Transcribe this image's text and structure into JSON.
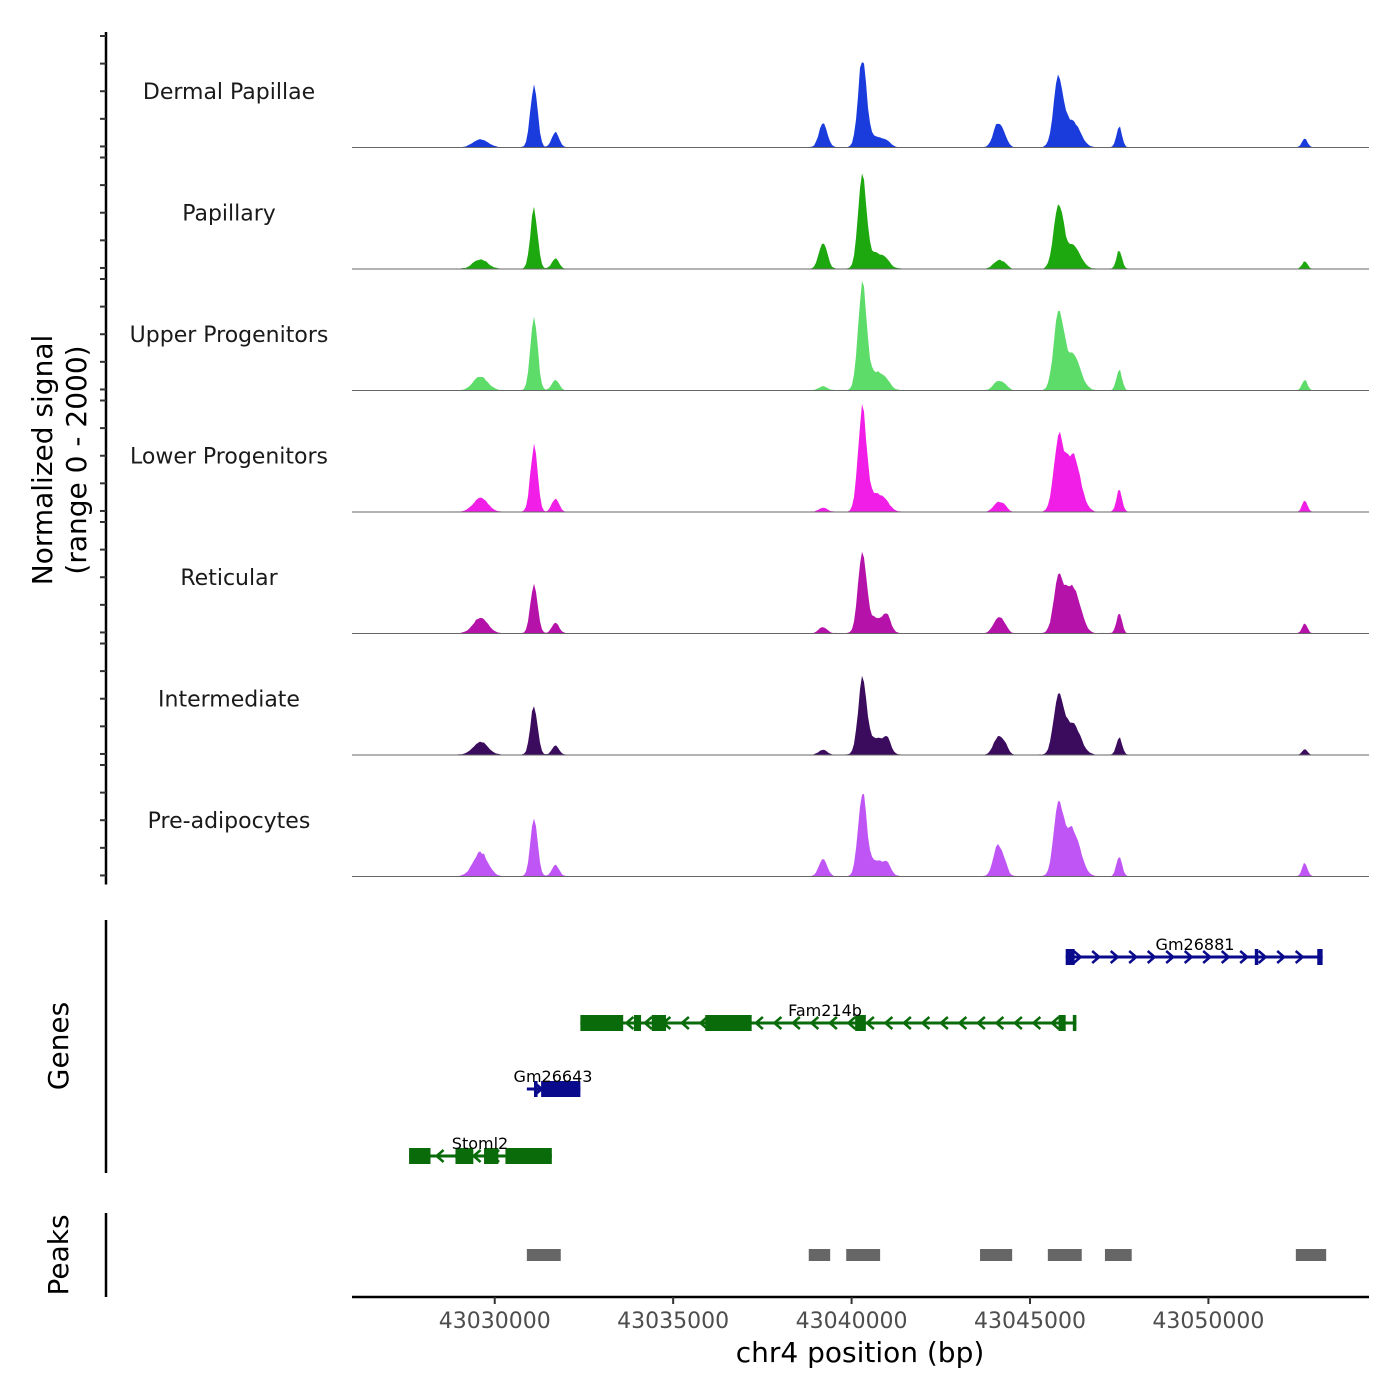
{
  "chart_data": {
    "type": "area",
    "title": "",
    "xlabel": "chr4 position (bp)",
    "ylabel": "Normalized signal\n(range 0 - 2000)",
    "ylabel_lines": [
      "Normalized signal",
      "(range 0 - 2000)"
    ],
    "ylim": [
      0,
      2000
    ],
    "xlim": [
      43026000,
      43054500
    ],
    "x_ticks": [
      43030000,
      43035000,
      43040000,
      43045000,
      43050000
    ],
    "x_tick_labels": [
      "43030000",
      "43035000",
      "43040000",
      "43045000",
      "43050000"
    ],
    "grid": false,
    "legend": "none",
    "peak_positions": [
      43029600,
      43031100,
      43031700,
      43039200,
      43040300,
      43040700,
      43041000,
      43044100,
      43044300,
      43045800,
      43046200,
      43047500,
      43052700
    ],
    "peak_widths": [
      450,
      220,
      220,
      250,
      260,
      500,
      220,
      280,
      200,
      300,
      450,
      170,
      160
    ],
    "series": [
      {
        "name": "Dermal Papillae",
        "color": "#1a3cdc",
        "values": [
          160,
          1200,
          300,
          480,
          1650,
          200,
          60,
          460,
          120,
          1300,
          500,
          400,
          170
        ]
      },
      {
        "name": "Papillary",
        "color": "#1ea80f",
        "values": [
          180,
          1150,
          200,
          520,
          1700,
          300,
          60,
          160,
          80,
          1200,
          450,
          360,
          150
        ]
      },
      {
        "name": "Upper Progenitors",
        "color": "#5ddc6a",
        "values": [
          260,
          1450,
          200,
          80,
          2000,
          350,
          70,
          170,
          80,
          1450,
          700,
          400,
          200
        ]
      },
      {
        "name": "Lower Progenitors",
        "color": "#f01ee6",
        "values": [
          260,
          1250,
          250,
          80,
          1950,
          350,
          60,
          180,
          80,
          1300,
          1100,
          420,
          220
        ]
      },
      {
        "name": "Reticular",
        "color": "#b512aa",
        "values": [
          300,
          960,
          200,
          120,
          1500,
          300,
          250,
          300,
          120,
          1000,
          900,
          380,
          200
        ]
      },
      {
        "name": "Intermediate",
        "color": "#3b0b5e",
        "values": [
          250,
          940,
          170,
          100,
          1400,
          320,
          220,
          330,
          160,
          1150,
          620,
          340,
          110
        ]
      },
      {
        "name": "Pre-adipocytes",
        "color": "#c055f5",
        "values": [
          460,
          1100,
          220,
          330,
          1550,
          300,
          160,
          600,
          150,
          1300,
          900,
          390,
          260
        ]
      }
    ],
    "genes": [
      {
        "name": "Gm26881",
        "strand": "+",
        "start": 43046000,
        "end": 43053200,
        "color": "#0a0a8c",
        "row": 1,
        "exons": [
          [
            43046000,
            43046250
          ],
          [
            43051300,
            43051400
          ],
          [
            43053050,
            43053200
          ]
        ]
      },
      {
        "name": "Fam214b",
        "strand": "-",
        "start": 43032400,
        "end": 43046300,
        "color": "#0a6b0a",
        "row": 2,
        "exons": [
          [
            43032400,
            43033600
          ],
          [
            43033900,
            43034100
          ],
          [
            43034400,
            43034800
          ],
          [
            43035900,
            43037200
          ],
          [
            43040100,
            43040400
          ],
          [
            43045800,
            43046000
          ],
          [
            43046200,
            43046300
          ]
        ]
      },
      {
        "name": "Gm26643",
        "strand": "+",
        "start": 43030900,
        "end": 43032400,
        "color": "#0a0a8c",
        "row": 3,
        "exons": [
          [
            43031100,
            43031200
          ],
          [
            43031300,
            43032400
          ]
        ]
      },
      {
        "name": "Stoml2",
        "strand": "-",
        "start": 43027600,
        "end": 43031600,
        "color": "#0a6b0a",
        "row": 4,
        "exons": [
          [
            43027600,
            43028200
          ],
          [
            43028900,
            43029400
          ],
          [
            43029700,
            43030100
          ],
          [
            43030300,
            43031600
          ]
        ]
      }
    ],
    "peaks_track": [
      [
        43030900,
        43031850
      ],
      [
        43038800,
        43039400
      ],
      [
        43039850,
        43040800
      ],
      [
        43043600,
        43044500
      ],
      [
        43045500,
        43046450
      ],
      [
        43047100,
        43047850
      ],
      [
        43052450,
        43053300
      ]
    ],
    "panel_labels": {
      "genes": "Genes",
      "peaks": "Peaks"
    }
  }
}
